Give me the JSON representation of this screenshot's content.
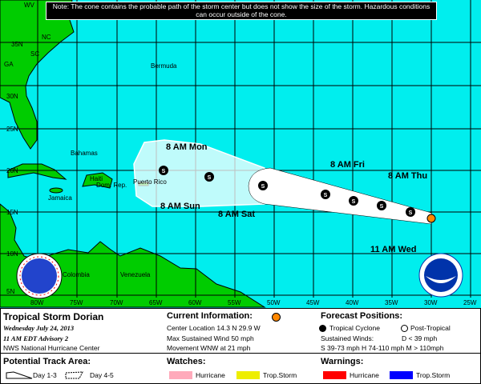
{
  "note": "Note: The cone contains the probable path of the storm center but does not show the size of the storm. Hazardous conditions can occur outside of the cone.",
  "map": {
    "longitude_labels": [
      "80W",
      "75W",
      "70W",
      "65W",
      "60W",
      "55W",
      "50W",
      "45W",
      "40W",
      "35W",
      "30W",
      "25W"
    ],
    "latitude_labels": [
      "35N",
      "30N",
      "25N",
      "20N",
      "15N",
      "10N",
      "5N"
    ],
    "place_labels": {
      "bermuda": "Bermuda",
      "bahamas": "Bahamas",
      "haiti": "Haiti",
      "dom_rep": "Dom. Rep.",
      "puerto_rico": "Puerto Rico",
      "jamaica": "Jamaica",
      "colombia": "Colombia",
      "venezuela": "Venezuela",
      "nc": "NC",
      "sc": "SC",
      "ga": "GA",
      "va": "VA",
      "wv": "WV"
    },
    "forecast_labels": {
      "mon": "8 AM Mon",
      "sun": "8 AM Sun",
      "sat": "8 AM Sat",
      "fri": "8 AM Fri",
      "thu": "8 AM Thu",
      "wed": "11 AM Wed"
    },
    "track_points": [
      {
        "label": "11 AM Wed",
        "type": "current"
      },
      {
        "label": "",
        "type": "S"
      },
      {
        "label": "8 AM Thu",
        "type": "S"
      },
      {
        "label": "",
        "type": "S"
      },
      {
        "label": "8 AM Fri",
        "type": "S"
      },
      {
        "label": "8 AM Sat",
        "type": "S"
      },
      {
        "label": "8 AM Sun",
        "type": "S"
      },
      {
        "label": "8 AM Mon",
        "type": "S"
      }
    ],
    "colors": {
      "ocean": "#00EEEE",
      "land": "#00CC00",
      "current": "#FF8800"
    }
  },
  "legend": {
    "storm_name": "Tropical Storm Dorian",
    "date": "Wednesday July 24, 2013",
    "advisory": "11 AM EDT Advisory 2",
    "agency": "NWS National Hurricane Center",
    "current_title": "Current Information:",
    "center_location": "Center Location 14.3 N  29.9 W",
    "max_wind": "Max Sustained Wind  50 mph",
    "movement": "Movement WNW at  21 mph",
    "forecast_title": "Forecast Positions:",
    "tropical_cyclone": "Tropical Cyclone",
    "post_tropical": "Post-Tropical",
    "sustained_winds": "Sustained Winds:",
    "d_def": "D  < 39 mph",
    "shm_def": "S  39-73 mph  H  74-110 mph  M  > 110mph",
    "track_title": "Potential Track Area:",
    "day13": "Day 1-3",
    "day45": "Day 4-5",
    "watches_title": "Watches:",
    "warnings_title": "Warnings:",
    "hurricane": "Hurricane",
    "trop_storm": "Trop.Storm",
    "colors": {
      "hurricane_watch": "#FFAABB",
      "ts_watch": "#EEEE00",
      "hurricane_warning": "#FF0000",
      "ts_warning": "#0000FF"
    }
  }
}
